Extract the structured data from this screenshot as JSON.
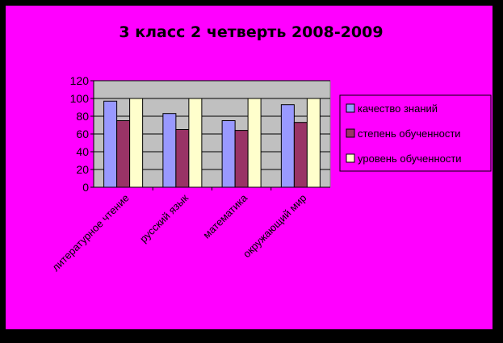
{
  "chart_data": {
    "type": "bar",
    "title": "3 класс  2 четверть 2008-2009",
    "xlabel": "",
    "ylabel": "",
    "ylim": [
      0,
      120
    ],
    "yticks": [
      0,
      20,
      40,
      60,
      80,
      100,
      120
    ],
    "categories": [
      "литературное чтение",
      "русский язык",
      "математика",
      "окружающий мир"
    ],
    "series": [
      {
        "name": "качество знаний",
        "values": [
          97,
          83,
          75,
          93
        ]
      },
      {
        "name": "степень обученности",
        "values": [
          75,
          65,
          64,
          73
        ]
      },
      {
        "name": "уровень обученности",
        "values": [
          100,
          100,
          100,
          100
        ]
      }
    ],
    "colors": {
      "background": "#ff00ff",
      "plot_area": "#c0c0c0",
      "series": [
        "#9999ff",
        "#993366",
        "#ffffcc"
      ]
    },
    "grid": true,
    "legend": "right"
  }
}
